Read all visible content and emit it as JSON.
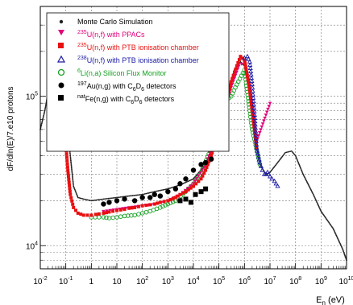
{
  "chart_data": {
    "type": "scatter",
    "xlabel": "E",
    "xlabel_sub": "n",
    "xlabel_unit": " (eV)",
    "ylabel": "dF/dln(E)/7.e10 protons",
    "xscale": "log",
    "yscale": "log",
    "xlim": [
      0.01,
      10000000000
    ],
    "ylim": [
      7000,
      400000
    ],
    "grid": true,
    "legend_position": "top-left",
    "x_ticks": [
      {
        "base": "10",
        "exp": "-2"
      },
      {
        "base": "10",
        "exp": "-1"
      },
      {
        "base": "1",
        "exp": ""
      },
      {
        "base": "10",
        "exp": ""
      },
      {
        "base": "10",
        "exp": "2"
      },
      {
        "base": "10",
        "exp": "3"
      },
      {
        "base": "10",
        "exp": "4"
      },
      {
        "base": "10",
        "exp": "5"
      },
      {
        "base": "10",
        "exp": "6"
      },
      {
        "base": "10",
        "exp": "7"
      },
      {
        "base": "10",
        "exp": "8"
      },
      {
        "base": "10",
        "exp": "9"
      },
      {
        "base": "10",
        "exp": "10"
      }
    ],
    "y_ticks": [
      {
        "base": "10",
        "exp": "4"
      },
      {
        "base": "10",
        "exp": "5"
      }
    ],
    "series": [
      {
        "name": "Monte Carlo Simulation",
        "color": "#222222",
        "marker": "dot",
        "x": [
          0.01,
          0.015,
          0.02,
          0.03,
          0.04,
          0.05,
          0.06,
          0.08,
          0.1,
          0.15,
          0.2,
          0.3,
          0.5,
          1,
          3,
          10,
          30,
          100,
          300,
          1000,
          3000,
          10000,
          30000,
          100000,
          200000,
          400000,
          700000,
          1000000,
          1500000,
          2500000,
          4000000,
          7000000,
          10000000,
          20000000,
          40000000,
          70000000,
          100000000,
          200000000,
          500000000,
          1000000000,
          3000000000,
          7000000000,
          10000000000
        ],
        "y": [
          60000,
          80000,
          105000,
          130000,
          145000,
          150000,
          140000,
          115000,
          80000,
          40000,
          25000,
          21000,
          20500,
          20000,
          20500,
          21000,
          21500,
          22000,
          23000,
          24000,
          25500,
          28000,
          35000,
          60000,
          100000,
          150000,
          170000,
          160000,
          110000,
          55000,
          35000,
          30000,
          31000,
          36000,
          42000,
          43000,
          40000,
          30000,
          22000,
          17000,
          13000,
          9500,
          8000
        ]
      },
      {
        "name": "U(n,f) with PPACs",
        "label_pre": "235",
        "label_main": "U(n,f) with PPACs",
        "color": "#e0007a",
        "marker": "triangle-down",
        "x": [
          3,
          10,
          30,
          100,
          300,
          1000,
          3000,
          10000,
          30000,
          100000,
          300000,
          600000,
          1000000,
          2000000,
          3000000,
          10000000
        ],
        "y": [
          17000,
          17500,
          18000,
          18500,
          19000,
          20000,
          22000,
          26000,
          35000,
          60000,
          115000,
          160000,
          170000,
          90000,
          50000,
          90000
        ]
      },
      {
        "name": "U(n,f) with PTB ionisation chamber (235)",
        "label_pre": "235",
        "label_main": "U(n,f) with PTB ionisation chamber",
        "color": "#e81010",
        "marker": "square",
        "x": [
          0.04,
          0.045,
          0.05,
          0.055,
          0.06,
          0.065,
          0.07,
          0.08,
          0.09,
          0.1,
          0.12,
          0.15,
          0.2,
          0.3,
          0.5,
          0.7,
          1,
          1.5,
          2,
          3,
          5,
          7,
          10,
          20,
          30,
          50,
          100,
          200,
          300,
          500,
          1000,
          2000,
          3000,
          5000,
          10000,
          20000,
          30000,
          50000,
          100000,
          200000,
          300000,
          500000,
          700000,
          1000000,
          1500000,
          2000000,
          3000000
        ],
        "y": [
          70000,
          90000,
          100000,
          110000,
          115000,
          113000,
          105000,
          85000,
          65000,
          48000,
          32000,
          22000,
          18000,
          16500,
          16000,
          16000,
          16000,
          16200,
          16300,
          16500,
          16800,
          17000,
          17200,
          17500,
          17800,
          18000,
          18500,
          18800,
          19000,
          19500,
          20000,
          21000,
          22000,
          23000,
          25000,
          28000,
          32000,
          40000,
          60000,
          95000,
          125000,
          160000,
          185000,
          175000,
          120000,
          80000,
          45000
        ]
      },
      {
        "name": "U(n,f) with PTB ionisation chamber (238)",
        "label_pre": "238",
        "label_main": "U(n,f) with PTB ionisation chamber",
        "color": "#1a1aa6",
        "marker": "triangle-up",
        "x": [
          1000000,
          1300000,
          1600000,
          2000000,
          2500000,
          3000000,
          4000000,
          5000000,
          6000000,
          7000000,
          8000000,
          9000000,
          10000000,
          12000000,
          15000000,
          20000000
        ],
        "y": [
          180000,
          185000,
          170000,
          120000,
          75000,
          45000,
          36000,
          32000,
          30000,
          30000,
          31000,
          30000,
          29000,
          28000,
          27000,
          25000
        ]
      },
      {
        "name": "Li(n,a) Silicon Flux Monitor",
        "label_pre": "6",
        "label_main": "Li(n,a) Silicon Flux Monitor",
        "color": "#14a020",
        "marker": "circle",
        "x": [
          1,
          2,
          3,
          5,
          10,
          20,
          50,
          100,
          200,
          500,
          1000,
          2000,
          5000,
          10000,
          20000,
          50000,
          100000,
          200000,
          300000,
          500000,
          1000000,
          2000000,
          4000000
        ],
        "y": [
          15500,
          15500,
          15500,
          15300,
          15500,
          15800,
          16000,
          16500,
          17000,
          18000,
          19000,
          20000,
          23000,
          26000,
          31000,
          45000,
          75000,
          95000,
          100000,
          120000,
          150000,
          60000,
          35000
        ]
      },
      {
        "name": "Au(n,g) with C6D6 detectors",
        "label_pre": "197",
        "label_main": "Au(n,g) with C",
        "label_sub": "6",
        "label_mid": "D",
        "label_sub2": "6",
        "label_end": " detectors",
        "color": "#000000",
        "marker": "filled-circle",
        "x": [
          3,
          5,
          10,
          20,
          50,
          100,
          200,
          300,
          500,
          1000,
          2000,
          3000,
          5000,
          10000,
          20000,
          30000,
          50000
        ],
        "y": [
          19000,
          19500,
          20000,
          20500,
          20000,
          21000,
          21000,
          22000,
          21500,
          23000,
          24000,
          26000,
          28000,
          32000,
          35000,
          36000,
          38000
        ]
      },
      {
        "name": "Fe(n,g) with C6D6 detectors",
        "label_pre": "nat",
        "label_main": "Fe(n,g) with C",
        "label_sub": "6",
        "label_mid": "D",
        "label_sub2": "6",
        "label_end": " detectors",
        "color": "#000000",
        "marker": "filled-square",
        "x": [
          3000,
          5000,
          8000,
          12000,
          20000,
          30000
        ],
        "y": [
          20000,
          20500,
          19500,
          22000,
          23000,
          24000
        ]
      }
    ]
  }
}
